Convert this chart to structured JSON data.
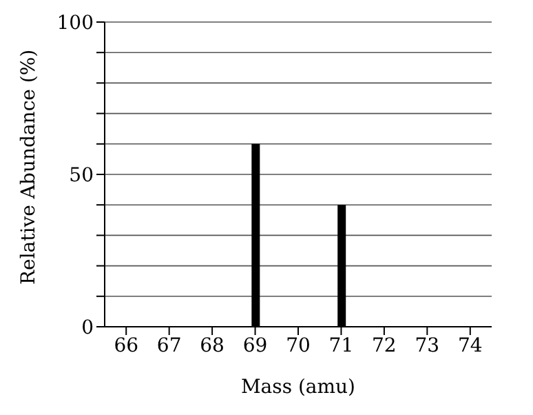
{
  "chart_data": {
    "type": "bar",
    "categories": [
      "66",
      "67",
      "68",
      "69",
      "70",
      "71",
      "72",
      "73",
      "74"
    ],
    "values": [
      null,
      null,
      null,
      60,
      null,
      40,
      null,
      null,
      null
    ],
    "color": "#000000",
    "xlabel": "Mass (amu)",
    "ylabel": "Relative Abundance (%)",
    "ylim": [
      0,
      100
    ],
    "yticks": [
      0,
      {
        "value": 10,
        "label": null
      },
      {
        "value": 20,
        "label": null
      },
      {
        "value": 30,
        "label": null
      },
      {
        "value": 40,
        "label": null
      },
      50,
      {
        "value": 60,
        "label": null
      },
      {
        "value": 70,
        "label": null
      },
      {
        "value": 80,
        "label": null
      },
      {
        "value": 90,
        "label": null
      },
      100
    ],
    "grid": "y",
    "legend": false
  }
}
